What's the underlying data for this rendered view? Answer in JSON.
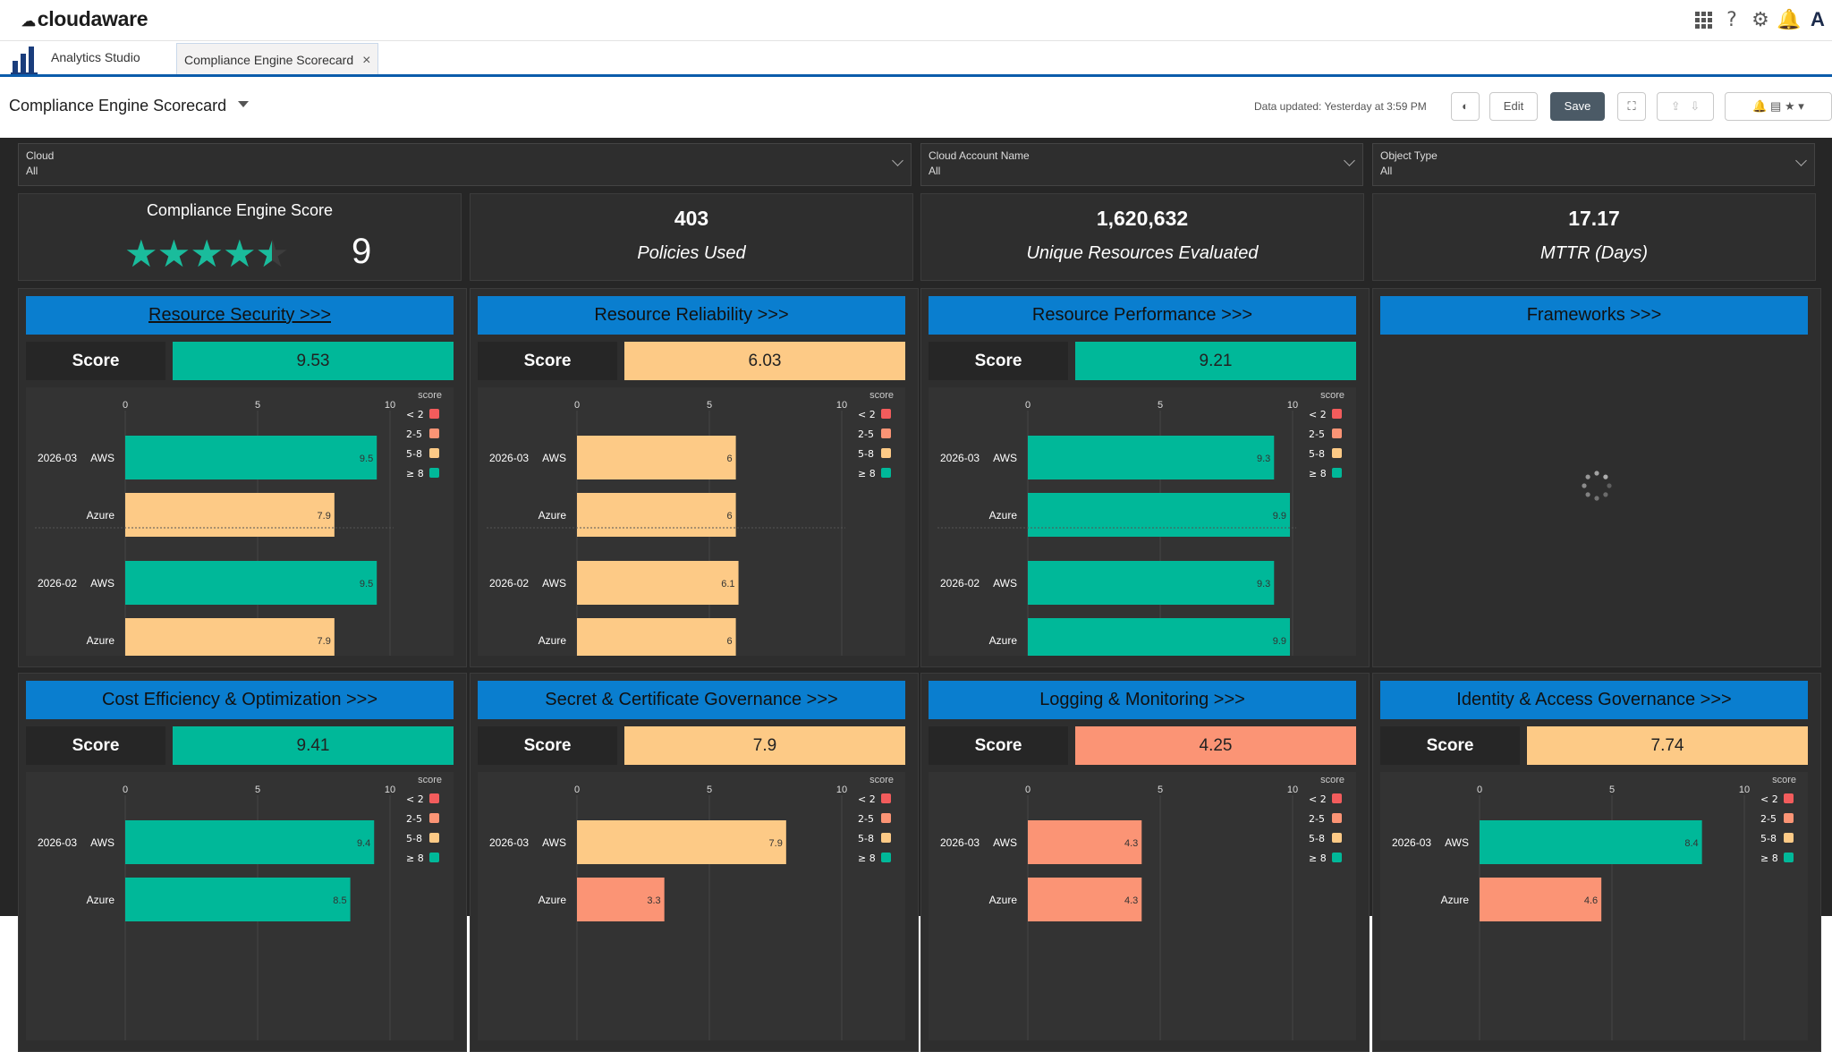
{
  "app": {
    "logo_text": "cloudaware",
    "user_initial": "A"
  },
  "tabs": [
    {
      "label": "Analytics Studio"
    },
    {
      "label": "Compliance Engine Scorecard",
      "close": "×"
    }
  ],
  "header": {
    "title": "Compliance Engine Scorecard",
    "data_updated": "Data updated: Yesterday at 3:59 PM",
    "edit_label": "Edit",
    "save_label": "Save"
  },
  "filters": [
    {
      "label": "Cloud",
      "value": "All"
    },
    {
      "label": "Cloud Account Name",
      "value": "All"
    },
    {
      "label": "Object Type",
      "value": "All"
    }
  ],
  "kpis": {
    "score_title": "Compliance Engine Score",
    "score_value": "9",
    "stars": 4.5,
    "policies": {
      "value": "403",
      "label": "Policies Used"
    },
    "resources": {
      "value": "1,620,632",
      "label": "Unique Resources Evaluated"
    },
    "mttr": {
      "value": "17.17",
      "label": "MTTR (Days)"
    }
  },
  "colors": {
    "lt2": "#f25c5c",
    "b25": "#fb9475",
    "b58": "#fdca86",
    "ge8": "#00b899",
    "header_blue": "#0a7ecf"
  },
  "legend": {
    "title": "score",
    "items": [
      "< 2",
      "2-5",
      "5-8",
      "≥ 8"
    ]
  },
  "score_label": "Score",
  "panels": [
    {
      "title": "Resource Security >>>",
      "score": "9.53",
      "chart_data": {
        "type": "bar",
        "orientation": "horizontal",
        "xlim": [
          0,
          10
        ],
        "ticks": [
          "0",
          "5",
          "10"
        ],
        "groups": [
          {
            "period": "2026-03",
            "bars": [
              {
                "cloud": "AWS",
                "value": 9.5
              },
              {
                "cloud": "Azure",
                "value": 7.9
              }
            ]
          },
          {
            "period": "2026-02",
            "bars": [
              {
                "cloud": "AWS",
                "value": 9.5
              },
              {
                "cloud": "Azure",
                "value": 7.9
              }
            ]
          }
        ]
      }
    },
    {
      "title": "Resource Reliability >>>",
      "score": "6.03",
      "chart_data": {
        "type": "bar",
        "orientation": "horizontal",
        "xlim": [
          0,
          10
        ],
        "ticks": [
          "0",
          "5",
          "10"
        ],
        "groups": [
          {
            "period": "2026-03",
            "bars": [
              {
                "cloud": "AWS",
                "value": 6
              },
              {
                "cloud": "Azure",
                "value": 6
              }
            ]
          },
          {
            "period": "2026-02",
            "bars": [
              {
                "cloud": "AWS",
                "value": 6.1
              },
              {
                "cloud": "Azure",
                "value": 6
              }
            ]
          }
        ]
      }
    },
    {
      "title": "Resource Performance >>>",
      "score": "9.21",
      "chart_data": {
        "type": "bar",
        "orientation": "horizontal",
        "xlim": [
          0,
          10
        ],
        "ticks": [
          "0",
          "5",
          "10"
        ],
        "groups": [
          {
            "period": "2026-03",
            "bars": [
              {
                "cloud": "AWS",
                "value": 9.3
              },
              {
                "cloud": "Azure",
                "value": 9.9
              }
            ]
          },
          {
            "period": "2026-02",
            "bars": [
              {
                "cloud": "AWS",
                "value": 9.3
              },
              {
                "cloud": "Azure",
                "value": 9.9
              }
            ]
          }
        ]
      }
    },
    {
      "title": "Frameworks >>>",
      "loading": true
    },
    {
      "title": "Cost Efficiency & Optimization >>>",
      "score": "9.41",
      "chart_data": {
        "type": "bar",
        "orientation": "horizontal",
        "xlim": [
          0,
          10
        ],
        "ticks": [
          "0",
          "5",
          "10"
        ],
        "groups": [
          {
            "period": "2026-03",
            "bars": [
              {
                "cloud": "AWS",
                "value": 9.4
              },
              {
                "cloud": "Azure",
                "value": 8.5
              }
            ]
          }
        ]
      }
    },
    {
      "title": "Secret & Certificate Governance >>>",
      "score": "7.9",
      "chart_data": {
        "type": "bar",
        "orientation": "horizontal",
        "xlim": [
          0,
          10
        ],
        "ticks": [
          "0",
          "5",
          "10"
        ],
        "groups": [
          {
            "period": "2026-03",
            "bars": [
              {
                "cloud": "AWS",
                "value": 7.9
              },
              {
                "cloud": "Azure",
                "value": 3.3
              }
            ]
          }
        ]
      }
    },
    {
      "title": "Logging & Monitoring >>>",
      "score": "4.25",
      "chart_data": {
        "type": "bar",
        "orientation": "horizontal",
        "xlim": [
          0,
          10
        ],
        "ticks": [
          "0",
          "5",
          "10"
        ],
        "groups": [
          {
            "period": "2026-03",
            "bars": [
              {
                "cloud": "AWS",
                "value": 4.3
              },
              {
                "cloud": "Azure",
                "value": 4.3
              }
            ]
          }
        ]
      }
    },
    {
      "title": "Identity & Access Governance >>>",
      "score": "7.74",
      "chart_data": {
        "type": "bar",
        "orientation": "horizontal",
        "xlim": [
          0,
          10
        ],
        "ticks": [
          "0",
          "5",
          "10"
        ],
        "groups": [
          {
            "period": "2026-03",
            "bars": [
              {
                "cloud": "AWS",
                "value": 8.4
              },
              {
                "cloud": "Azure",
                "value": 4.6
              }
            ]
          }
        ]
      }
    }
  ]
}
